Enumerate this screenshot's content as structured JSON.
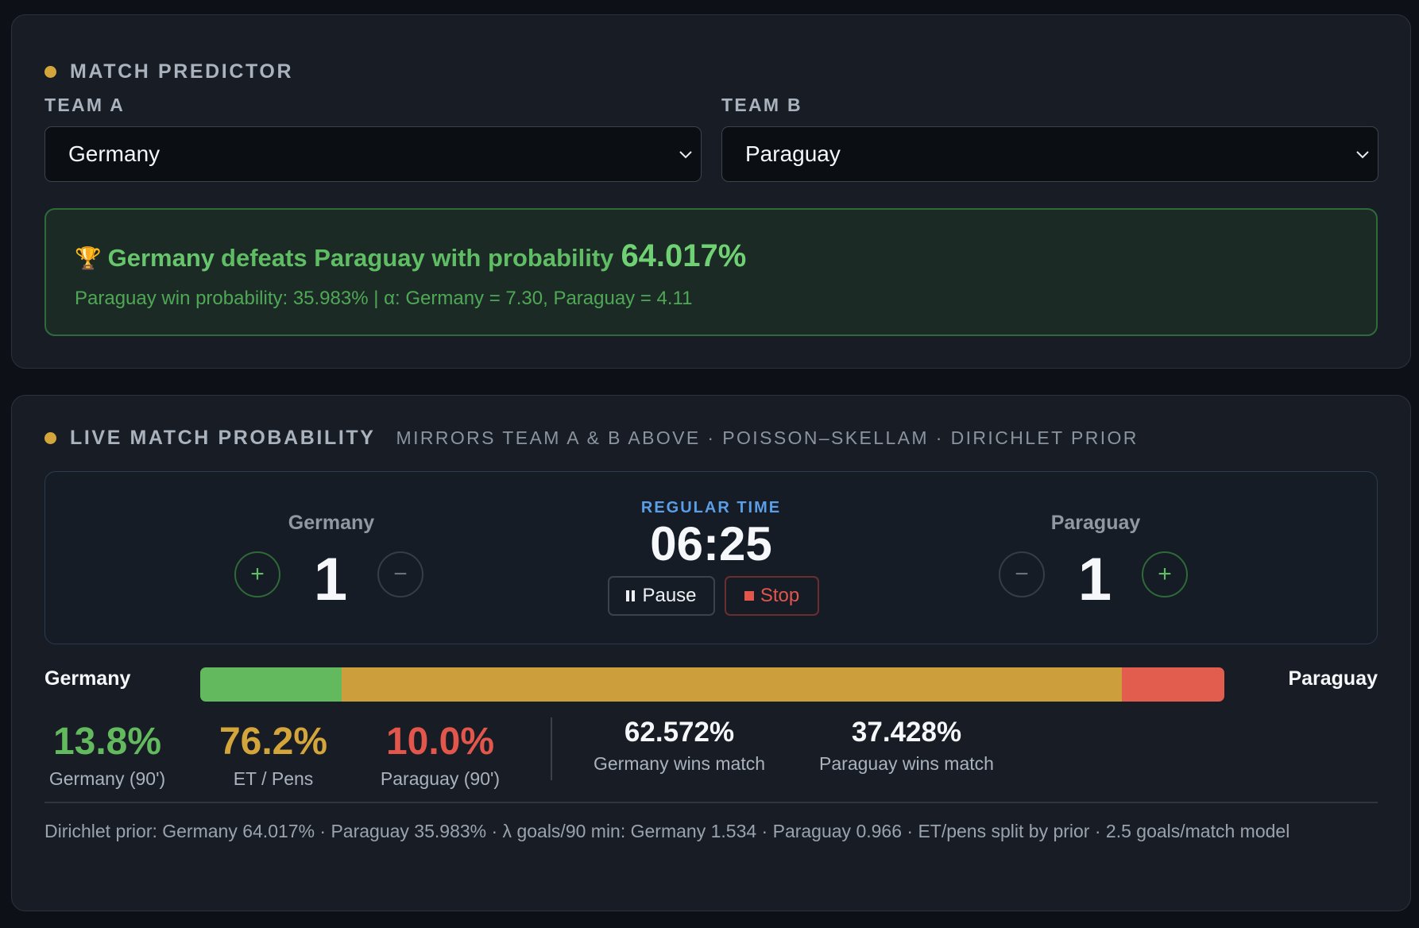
{
  "predictor": {
    "title": "MATCH PREDICTOR",
    "team_a_label": "TEAM A",
    "team_b_label": "TEAM B",
    "team_a_value": "Germany",
    "team_b_value": "Paraguay",
    "result": {
      "icon": "trophy-icon",
      "winner": "Germany",
      "text": "defeats Paraguay with probability",
      "probability": "64.017%",
      "detail": "Paraguay win probability: 35.983%  |  α: Germany = 7.30, Paraguay = 4.11"
    }
  },
  "live": {
    "title": "LIVE MATCH PROBABILITY",
    "subtitle": "MIRRORS TEAM A & B ABOVE · POISSON–SKELLAM · DIRICHLET PRIOR",
    "team_a": {
      "name": "Germany",
      "score": "1",
      "plus": "+",
      "minus": "−"
    },
    "team_b": {
      "name": "Paraguay",
      "score": "1",
      "plus": "+",
      "minus": "−"
    },
    "period": "REGULAR TIME",
    "clock": "06:25",
    "pause_label": "Pause",
    "stop_label": "Stop",
    "bar": {
      "left_label": "Germany",
      "right_label": "Paraguay",
      "segments": [
        {
          "name": "team-a-win",
          "fraction": 0.138,
          "color": "#63b95d"
        },
        {
          "name": "et-pens",
          "fraction": 0.762,
          "color": "#cd9f3c"
        },
        {
          "name": "team-b-win",
          "fraction": 0.1,
          "color": "#e25d4e"
        }
      ]
    },
    "stats": {
      "a_90": {
        "value": "13.8%",
        "label": "Germany (90')",
        "color": "#63b95d"
      },
      "et": {
        "value": "76.2%",
        "label": "ET / Pens",
        "color": "#d4a53b"
      },
      "b_90": {
        "value": "10.0%",
        "label": "Paraguay (90')",
        "color": "#e2564c"
      },
      "a_match": {
        "value": "62.572%",
        "label": "Germany wins match"
      },
      "b_match": {
        "value": "37.428%",
        "label": "Paraguay wins match"
      }
    },
    "footnote": "Dirichlet prior: Germany 64.017% · Paraguay 35.983%  ·  λ goals/90 min: Germany 1.534 · Paraguay 0.966  ·  ET/pens split by prior · 2.5 goals/match model"
  }
}
